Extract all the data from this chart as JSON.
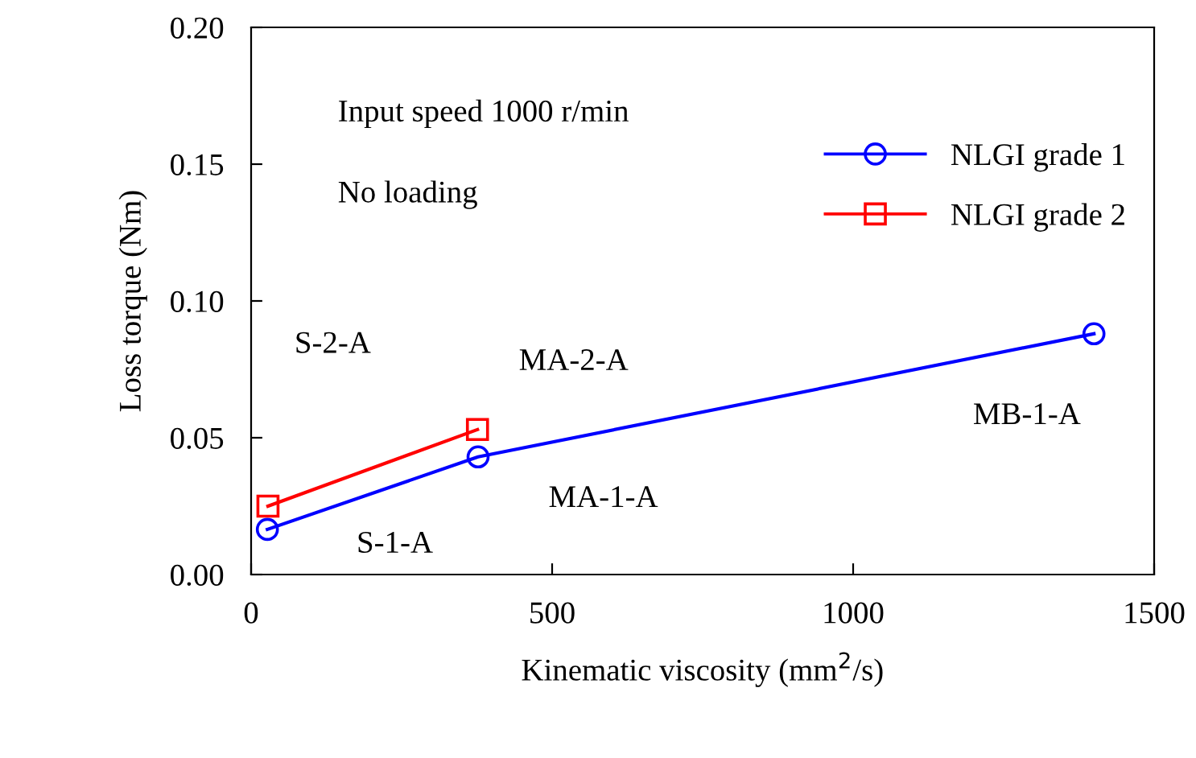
{
  "chart_data": {
    "type": "line",
    "xlabel": "Kinematic viscosity (mm$^{2}$/s)",
    "ylabel": "Loss torque (Nm)",
    "xlim": [
      0,
      1500
    ],
    "xticks": [
      0,
      500,
      1000,
      1500
    ],
    "ylim": [
      0,
      0.2
    ],
    "yticks": [
      {
        "value": 0,
        "label": "0.00"
      },
      {
        "value": 0.05,
        "label": "0.05"
      },
      {
        "value": 0.1,
        "label": "0.10"
      },
      {
        "value": 0.15,
        "label": "0.15"
      },
      {
        "value": 0.2,
        "label": "0.20"
      }
    ],
    "series": [
      {
        "name": "NLGI grade 1",
        "color": "#0000ff",
        "marker": "circle",
        "x": [
          27,
          377,
          1400
        ],
        "values": [
          0.0165,
          0.043,
          0.088
        ]
      },
      {
        "name": "NLGI grade 2",
        "color": "#ff0000",
        "marker": "square",
        "x": [
          28,
          376
        ],
        "values": [
          0.025,
          0.053
        ]
      }
    ],
    "annotations": [
      "Input speed 1000 r/min",
      "No loading",
      {
        "text": "S-1-A",
        "x": 27,
        "y": 0.0165
      },
      "S-2-A",
      {
        "text": "MA-1-A",
        "x": 377,
        "y": 0.043
      },
      {
        "text": "MA-2-A",
        "x": 376,
        "y": 0.053
      },
      {
        "text": "MB-1-A",
        "x": 1400,
        "y": 0.088
      }
    ],
    "legend": "right",
    "grid": false
  }
}
